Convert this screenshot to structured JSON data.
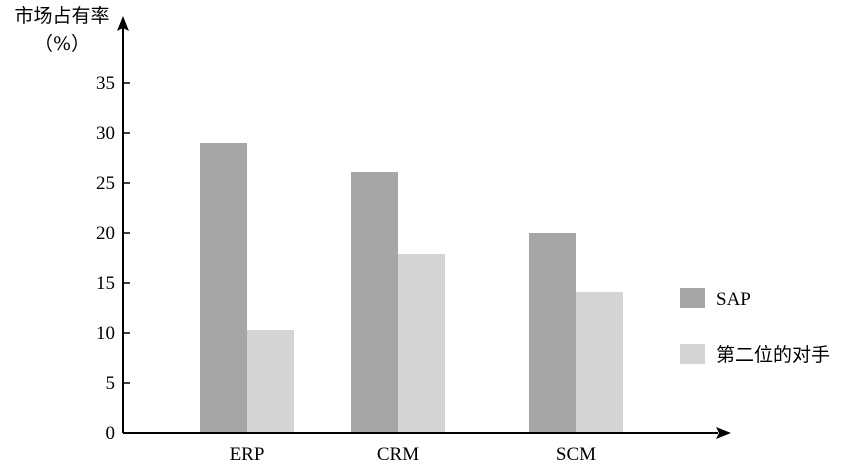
{
  "chart_data": {
    "type": "bar",
    "title": "",
    "xlabel": "",
    "ylabel": "市场占有率",
    "ylabel_unit": "（%）",
    "categories": [
      "ERP",
      "CRM",
      "SCM"
    ],
    "series": [
      {
        "name": "SAP",
        "values": [
          29,
          26.1,
          20
        ],
        "color": "#a6a6a6"
      },
      {
        "name": "第二位的对手",
        "values": [
          10.3,
          17.9,
          14.1
        ],
        "color": "#d4d4d4"
      }
    ],
    "yticks": [
      0,
      5,
      10,
      15,
      20,
      25,
      30,
      35
    ],
    "ylim": [
      0,
      40
    ],
    "grid": false,
    "legend_position": "right"
  }
}
